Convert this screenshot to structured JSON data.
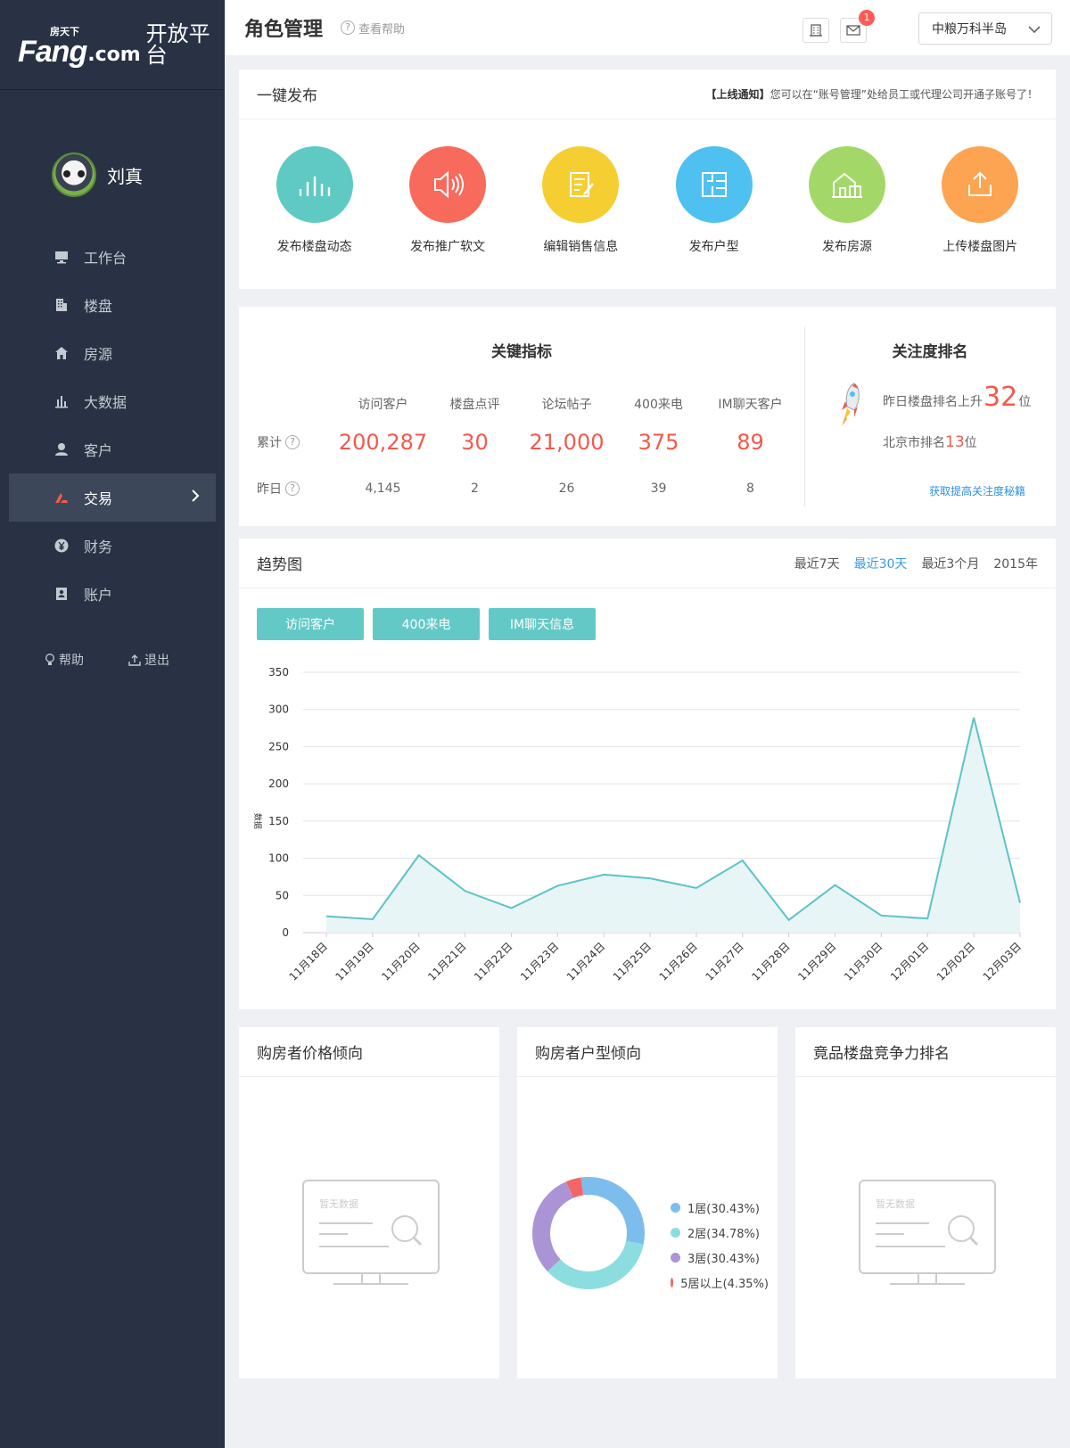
{
  "brand": {
    "fang": "Fang",
    "fang_sup": "房天下",
    "com": ".com",
    "platform": "开放平台"
  },
  "user": {
    "name": "刘真"
  },
  "nav": [
    {
      "label": "工作台",
      "icon": "desktop-icon"
    },
    {
      "label": "楼盘",
      "icon": "building-icon"
    },
    {
      "label": "房源",
      "icon": "home-icon"
    },
    {
      "label": "大数据",
      "icon": "bar-chart-icon"
    },
    {
      "label": "客户",
      "icon": "user-icon"
    },
    {
      "label": "交易",
      "icon": "trade-icon",
      "active": true
    },
    {
      "label": "财务",
      "icon": "yen-icon"
    },
    {
      "label": "账户",
      "icon": "account-icon"
    }
  ],
  "side_footer": {
    "help": "帮助",
    "logout": "退出"
  },
  "topbar": {
    "title": "角色管理",
    "help": "查看帮助",
    "mail_count": "1",
    "project": "中粮万科半岛"
  },
  "quick": {
    "title": "一键发布",
    "notice_tag": "【上线通知】",
    "notice_text": "您可以在“账号管理”处给员工或代理公司开通子账号了！",
    "items": [
      {
        "label": "发布楼盘动态",
        "color": "#5fcac4",
        "icon": "bars-icon"
      },
      {
        "label": "发布推广软文",
        "color": "#f76a5c",
        "icon": "speaker-icon"
      },
      {
        "label": "编辑销售信息",
        "color": "#f5ce32",
        "icon": "edit-icon"
      },
      {
        "label": "发布户型",
        "color": "#4fc1f0",
        "icon": "floorplan-icon"
      },
      {
        "label": "发布房源",
        "color": "#a3d869",
        "icon": "house-icon"
      },
      {
        "label": "上传楼盘图片",
        "color": "#fda452",
        "icon": "upload-icon"
      }
    ]
  },
  "kpi": {
    "title": "关键指标",
    "headers": [
      "访问客户",
      "楼盘点评",
      "论坛帖子",
      "400来电",
      "IM聊天客户"
    ],
    "total_label": "累计",
    "yesterday_label": "昨日",
    "totals": [
      "200,287",
      "30",
      "21,000",
      "375",
      "89"
    ],
    "yesterday": [
      "4,145",
      "2",
      "26",
      "39",
      "8"
    ]
  },
  "rank": {
    "title": "关注度排名",
    "line1_prefix": "昨日楼盘排名上升",
    "line1_value": "32",
    "line1_suffix": "位",
    "line2_prefix": "北京市排名",
    "line2_value": "13",
    "line2_suffix": "位",
    "link": "获取提高关注度秘籍"
  },
  "trend": {
    "title": "趋势图",
    "ranges": [
      "最近7天",
      "最近30天",
      "最近3个月",
      "2015年"
    ],
    "active_range": "最近30天",
    "series_buttons": [
      "访问客户",
      "400来电",
      "IM聊天信息"
    ]
  },
  "chart_data": {
    "type": "area",
    "title": "趋势图",
    "xlabel": "",
    "ylabel": "数据",
    "ylim": [
      0,
      350
    ],
    "yticks": [
      0,
      50,
      100,
      150,
      200,
      250,
      300,
      350
    ],
    "categories": [
      "11月18日",
      "11月19日",
      "11月20日",
      "11月21日",
      "11月22日",
      "11月23日",
      "11月24日",
      "11月25日",
      "11月26日",
      "11月27日",
      "11月28日",
      "11月29日",
      "11月30日",
      "12月01日",
      "12月02日",
      "12月03日"
    ],
    "series": [
      {
        "name": "访问客户",
        "values": [
          22,
          18,
          104,
          56,
          33,
          63,
          78,
          73,
          60,
          97,
          17,
          64,
          23,
          19,
          289,
          40
        ]
      }
    ],
    "line_color": "#5dc3c6",
    "fill_color": "#e8f5f6"
  },
  "bottom": {
    "price_title": "购房者价格倾向",
    "type_title": "购房者户型倾向",
    "compete_title": "竟品楼盘竞争力排名",
    "nodata": "暂无数据",
    "donut": [
      {
        "label": "1居(30.43%)",
        "value": 30.43,
        "color": "#7dbdee"
      },
      {
        "label": "2居(34.78%)",
        "value": 34.78,
        "color": "#8cdde0"
      },
      {
        "label": "3居(30.43%)",
        "value": 30.43,
        "color": "#ab94d6"
      },
      {
        "label": "5居以上(4.35%)",
        "value": 4.35,
        "color": "#f56565"
      }
    ]
  }
}
